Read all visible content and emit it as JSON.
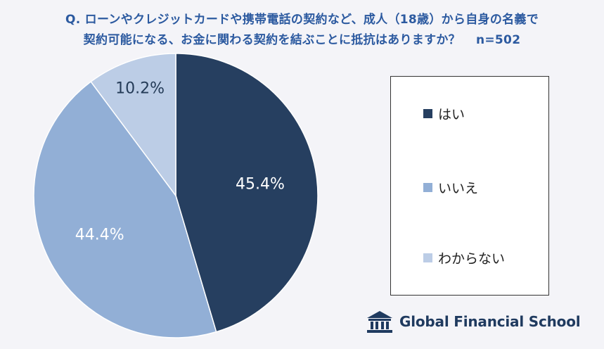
{
  "title": {
    "line1": "Q. ローンやクレジットカードや携帯電話の契約など、成人（18歳）から自身の名義で",
    "line2": "契約可能になる、お金に関わる契約を結ぶことに抵抗はありますか？",
    "n": "n=502"
  },
  "chart_data": {
    "type": "pie",
    "slices": [
      {
        "label": "はい",
        "value": 45.4,
        "display": "45.4%",
        "color": "#263f60"
      },
      {
        "label": "いいえ",
        "value": 44.4,
        "display": "44.4%",
        "color": "#92afd6"
      },
      {
        "label": "わからない",
        "value": 10.2,
        "display": "10.2%",
        "color": "#bccde6"
      }
    ],
    "start_angle_deg": 0,
    "direction": "clockwise",
    "legend_position": "right"
  },
  "legend": {
    "items": [
      {
        "label": "はい",
        "color": "#263f60"
      },
      {
        "label": "いいえ",
        "color": "#92afd6"
      },
      {
        "label": "わからない",
        "color": "#bccde6"
      }
    ]
  },
  "logo": {
    "text": "Global Financial School",
    "icon": "school-building-icon"
  }
}
